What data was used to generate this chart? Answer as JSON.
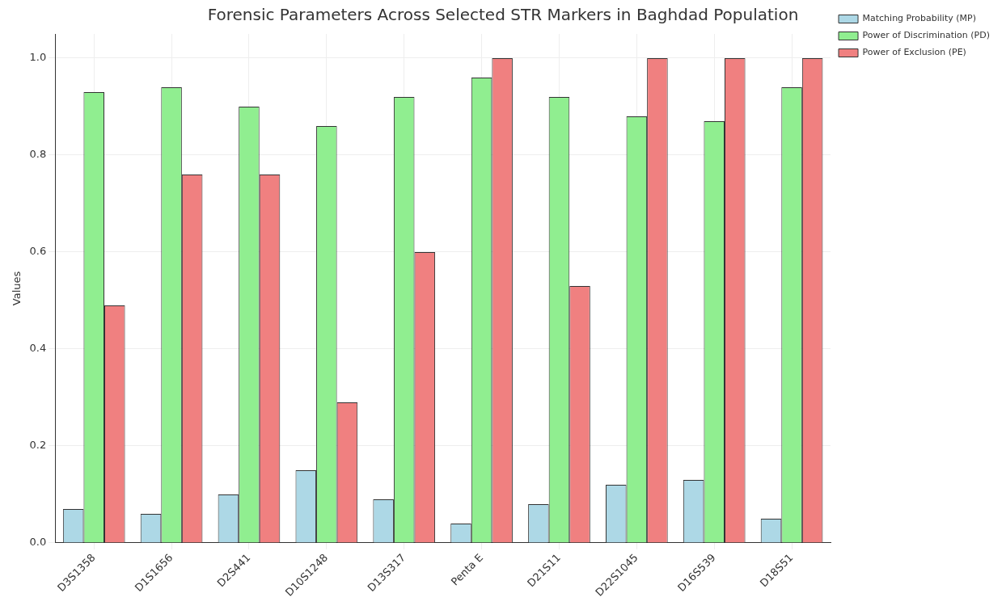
{
  "chart_data": {
    "type": "bar",
    "title": "Forensic Parameters Across Selected STR Markers in Baghdad Population",
    "ylabel": "Values",
    "categories": [
      "D3S1358",
      "D1S1656",
      "D2S441",
      "D10S1248",
      "D13S317",
      "Penta E",
      "D21S11",
      "D22S1045",
      "D16S539",
      "D18S51"
    ],
    "series": [
      {
        "name": "Matching Probability (MP)",
        "color": "#add8e6",
        "values": [
          0.07,
          0.06,
          0.1,
          0.15,
          0.09,
          0.04,
          0.08,
          0.12,
          0.13,
          0.05
        ]
      },
      {
        "name": "Power of Discrimination (PD)",
        "color": "#90ee90",
        "values": [
          0.93,
          0.94,
          0.9,
          0.86,
          0.92,
          0.96,
          0.92,
          0.88,
          0.87,
          0.94
        ]
      },
      {
        "name": "Power of Exclusion (PE)",
        "color": "#f08080",
        "values": [
          0.49,
          0.76,
          0.76,
          0.29,
          0.6,
          1.0,
          0.53,
          1.0,
          1.0,
          1.0
        ]
      }
    ],
    "ylim": [
      0,
      1.05
    ],
    "yticks": [
      {
        "value": 0,
        "label": "0.0"
      },
      {
        "value": 0.2,
        "label": "0.2"
      },
      {
        "value": 0.4,
        "label": "0.4"
      },
      {
        "value": 0.6,
        "label": "0.6"
      },
      {
        "value": 0.8,
        "label": "0.8"
      },
      {
        "value": 1.0,
        "label": "1.0"
      }
    ],
    "grid": true,
    "legend": "top right"
  }
}
